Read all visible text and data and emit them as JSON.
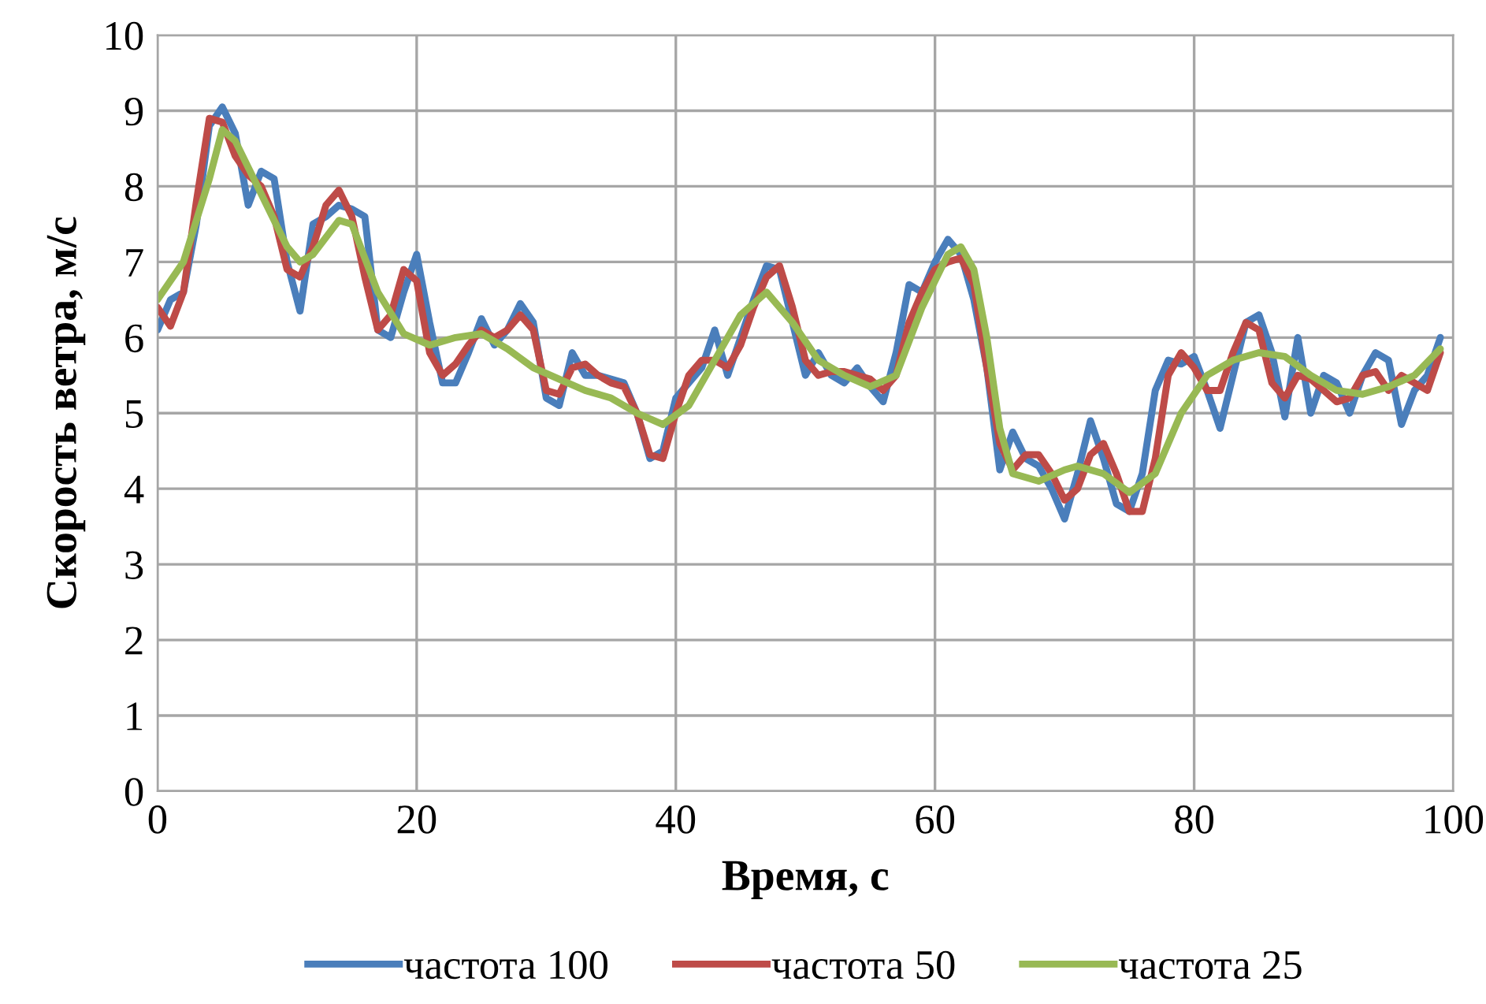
{
  "chart_data": {
    "type": "line",
    "xlabel": "Время, с",
    "ylabel": "Скорость ветра, м/с",
    "xlim": [
      0,
      100
    ],
    "ylim": [
      0,
      10
    ],
    "xticks": [
      0,
      20,
      40,
      60,
      80,
      100
    ],
    "yticks": [
      0,
      1,
      2,
      3,
      4,
      5,
      6,
      7,
      8,
      9,
      10
    ],
    "grid": true,
    "legend": "bottom",
    "marker": "none",
    "line_style": "solid",
    "series": [
      {
        "name": "частота 100",
        "color": "#4a7ebb",
        "x": [
          0,
          1,
          2,
          3,
          4,
          5,
          6,
          7,
          8,
          9,
          10,
          11,
          12,
          13,
          14,
          15,
          16,
          17,
          18,
          19,
          20,
          21,
          22,
          23,
          24,
          25,
          26,
          27,
          28,
          29,
          30,
          31,
          32,
          33,
          34,
          35,
          36,
          37,
          38,
          39,
          40,
          41,
          42,
          43,
          44,
          45,
          46,
          47,
          48,
          49,
          50,
          51,
          52,
          53,
          54,
          55,
          56,
          57,
          58,
          59,
          60,
          61,
          62,
          63,
          64,
          65,
          66,
          67,
          68,
          69,
          70,
          71,
          72,
          73,
          74,
          75,
          76,
          77,
          78,
          79,
          80,
          81,
          82,
          83,
          84,
          85,
          86,
          87,
          88,
          89,
          90,
          91,
          92,
          93,
          94,
          95,
          96,
          97,
          98,
          99
        ],
        "values": [
          6.1,
          6.5,
          6.6,
          7.5,
          8.8,
          9.05,
          8.7,
          7.75,
          8.2,
          8.1,
          7.0,
          6.35,
          7.5,
          7.6,
          7.75,
          7.7,
          7.6,
          6.1,
          6.0,
          6.6,
          7.1,
          6.2,
          5.4,
          5.4,
          5.8,
          6.25,
          5.9,
          6.1,
          6.45,
          6.2,
          5.2,
          5.1,
          5.8,
          5.5,
          5.5,
          5.45,
          5.4,
          5.0,
          4.4,
          4.5,
          5.2,
          5.4,
          5.6,
          6.1,
          5.5,
          6.0,
          6.5,
          6.95,
          6.9,
          6.2,
          5.5,
          5.8,
          5.5,
          5.4,
          5.6,
          5.35,
          5.15,
          5.8,
          6.7,
          6.6,
          7.0,
          7.3,
          7.1,
          6.5,
          5.6,
          4.25,
          4.75,
          4.4,
          4.3,
          4.0,
          3.6,
          4.2,
          4.9,
          4.4,
          3.8,
          3.7,
          4.2,
          5.3,
          5.7,
          5.65,
          5.75,
          5.3,
          4.8,
          5.5,
          6.2,
          6.3,
          5.8,
          4.95,
          6.0,
          5.0,
          5.5,
          5.4,
          5.0,
          5.5,
          5.8,
          5.7,
          4.85,
          5.3,
          5.5,
          6.0
        ]
      },
      {
        "name": "частота 50",
        "color": "#be4b48",
        "x": [
          0,
          1,
          2,
          3,
          4,
          5,
          6,
          7,
          8,
          9,
          10,
          11,
          12,
          13,
          14,
          15,
          16,
          17,
          18,
          19,
          20,
          21,
          22,
          23,
          24,
          25,
          26,
          27,
          28,
          29,
          30,
          31,
          32,
          33,
          34,
          35,
          36,
          37,
          38,
          39,
          40,
          41,
          42,
          43,
          44,
          45,
          46,
          47,
          48,
          49,
          50,
          51,
          52,
          53,
          54,
          55,
          56,
          57,
          58,
          59,
          60,
          61,
          62,
          63,
          64,
          65,
          66,
          67,
          68,
          69,
          70,
          71,
          72,
          73,
          74,
          75,
          76,
          77,
          78,
          79,
          80,
          81,
          82,
          83,
          84,
          85,
          86,
          87,
          88,
          89,
          90,
          91,
          92,
          93,
          94,
          95,
          96,
          97,
          98,
          99
        ],
        "values": [
          6.4,
          6.15,
          6.6,
          7.8,
          8.9,
          8.85,
          8.4,
          8.15,
          8.0,
          7.6,
          6.9,
          6.8,
          7.2,
          7.75,
          7.95,
          7.6,
          6.8,
          6.1,
          6.3,
          6.9,
          6.75,
          5.8,
          5.5,
          5.65,
          5.9,
          6.1,
          6.0,
          6.1,
          6.3,
          6.1,
          5.3,
          5.25,
          5.6,
          5.65,
          5.5,
          5.4,
          5.35,
          5.0,
          4.45,
          4.4,
          5.0,
          5.5,
          5.7,
          5.7,
          5.6,
          5.9,
          6.4,
          6.8,
          6.95,
          6.4,
          5.7,
          5.5,
          5.55,
          5.55,
          5.5,
          5.45,
          5.3,
          5.5,
          6.2,
          6.6,
          6.9,
          7.0,
          7.05,
          6.7,
          5.6,
          4.6,
          4.25,
          4.45,
          4.45,
          4.2,
          3.85,
          4.0,
          4.45,
          4.6,
          4.2,
          3.7,
          3.7,
          4.4,
          5.5,
          5.8,
          5.6,
          5.3,
          5.3,
          5.8,
          6.2,
          6.1,
          5.4,
          5.2,
          5.5,
          5.45,
          5.3,
          5.15,
          5.2,
          5.5,
          5.55,
          5.3,
          5.5,
          5.4,
          5.3,
          5.8
        ]
      },
      {
        "name": "частота 25",
        "color": "#98b954",
        "x": [
          0,
          2,
          4,
          5,
          6,
          8,
          10,
          11,
          12,
          14,
          15,
          17,
          19,
          21,
          23,
          25,
          27,
          29,
          31,
          33,
          35,
          37,
          39,
          41,
          43,
          45,
          47,
          49,
          51,
          53,
          55,
          57,
          59,
          61,
          62,
          63,
          64,
          65,
          66,
          68,
          70,
          71,
          73,
          75,
          77,
          79,
          81,
          83,
          85,
          87,
          89,
          91,
          93,
          95,
          97,
          99
        ],
        "values": [
          6.5,
          7.0,
          8.1,
          8.75,
          8.6,
          7.9,
          7.2,
          7.0,
          7.1,
          7.55,
          7.5,
          6.6,
          6.05,
          5.9,
          6.0,
          6.05,
          5.85,
          5.6,
          5.45,
          5.3,
          5.2,
          5.0,
          4.85,
          5.1,
          5.7,
          6.3,
          6.6,
          6.2,
          5.7,
          5.5,
          5.35,
          5.5,
          6.4,
          7.1,
          7.2,
          6.9,
          6.0,
          4.8,
          4.2,
          4.1,
          4.25,
          4.3,
          4.2,
          3.95,
          4.2,
          5.0,
          5.5,
          5.7,
          5.8,
          5.75,
          5.5,
          5.3,
          5.25,
          5.35,
          5.5,
          5.85
        ]
      }
    ]
  }
}
